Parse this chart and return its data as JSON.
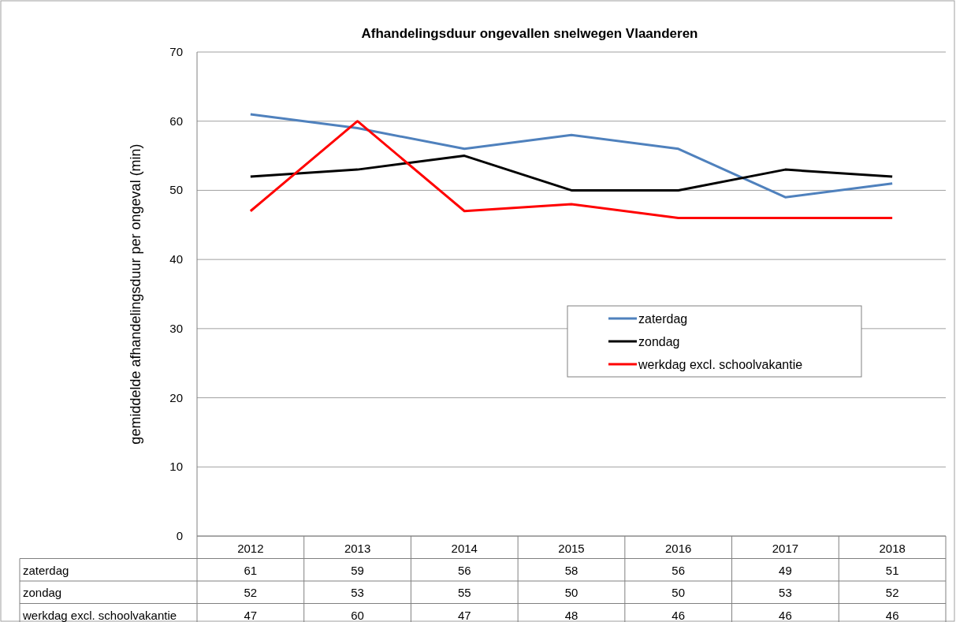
{
  "chart_data": {
    "type": "line",
    "title": "Afhandelingsduur ongevallen snelwegen Vlaanderen",
    "ylabel": "gemiddelde afhandelingsduur per ongeval  (min)",
    "categories": [
      "2012",
      "2013",
      "2014",
      "2015",
      "2016",
      "2017",
      "2018"
    ],
    "series": [
      {
        "name": "zaterdag",
        "color": "#4f81bd",
        "values": [
          61,
          59,
          56,
          58,
          56,
          49,
          51
        ]
      },
      {
        "name": "zondag",
        "color": "#000000",
        "values": [
          52,
          53,
          55,
          50,
          50,
          53,
          52
        ]
      },
      {
        "name": "werkdag excl. schoolvakantie",
        "color": "#ff0000",
        "values": [
          47,
          60,
          47,
          48,
          46,
          46,
          46
        ]
      }
    ],
    "ylim": [
      0,
      70
    ],
    "yticks": [
      0,
      10,
      20,
      30,
      40,
      50,
      60,
      70
    ],
    "grid": "y",
    "legend": "right",
    "marker": "none",
    "line_style": "solid",
    "data_labels": true
  }
}
